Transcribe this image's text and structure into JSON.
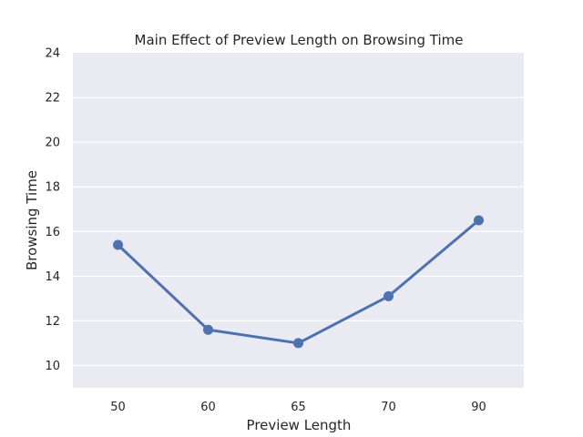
{
  "chart_data": {
    "type": "line",
    "title": "Main Effect of Preview Length on Browsing Time",
    "xlabel": "Preview Length",
    "ylabel": "Browsing Time",
    "categories": [
      "50",
      "60",
      "65",
      "70",
      "90"
    ],
    "series": [
      {
        "values": [
          15.4,
          11.6,
          11.0,
          13.1,
          16.5
        ],
        "color": "#4c72b0"
      }
    ],
    "yticks": [
      10,
      12,
      14,
      16,
      18,
      20,
      22,
      24
    ],
    "ylim": [
      9.0,
      24.0
    ],
    "grid": true,
    "legend": "none",
    "background_color": "#eaeaf2",
    "grid_color": "#ffffff",
    "text_color": "#262626"
  }
}
